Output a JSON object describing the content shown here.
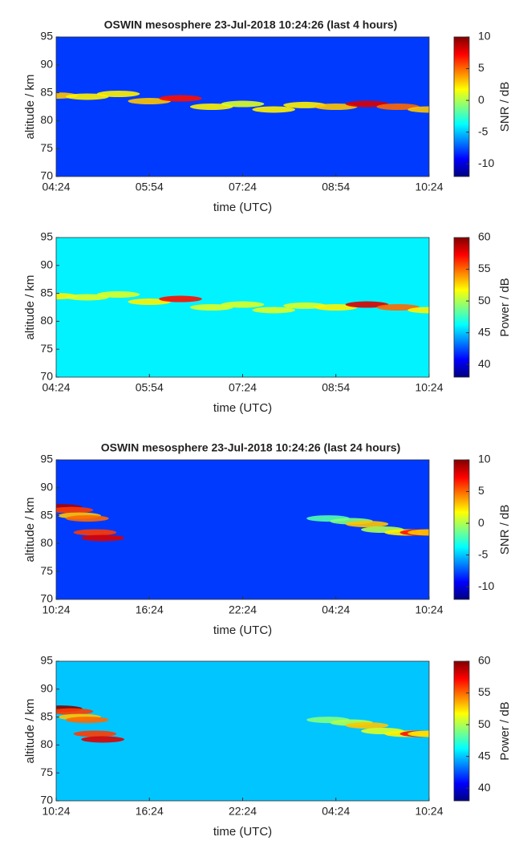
{
  "chart_data": [
    {
      "type": "heatmap",
      "title": "OSWIN mesosphere 23-Jul-2018 10:24:26 (last 4 hours)",
      "xlabel": "time (UTC)",
      "ylabel": "altitude / km",
      "colorbar_label": "SNR / dB",
      "colormap": "jet",
      "xlim": [
        0,
        6
      ],
      "xticks": [
        {
          "value": 0,
          "label": "04:24"
        },
        {
          "value": 1.5,
          "label": "05:54"
        },
        {
          "value": 3,
          "label": "07:24"
        },
        {
          "value": 4.5,
          "label": "08:54"
        },
        {
          "value": 6,
          "label": "10:24"
        }
      ],
      "ylim": [
        70,
        95
      ],
      "yticks": [
        70,
        75,
        80,
        85,
        90,
        95
      ],
      "clim": [
        -12,
        10
      ],
      "cticks": [
        -10,
        -5,
        0,
        5,
        10
      ],
      "background": -8,
      "x": [
        0,
        0.5,
        1,
        1.5,
        2,
        2.5,
        3,
        3.5,
        4,
        4.5,
        5,
        5.5,
        6
      ],
      "y": [
        84.5,
        84.3,
        84.8,
        83.5,
        84,
        82.5,
        83,
        82,
        82.8,
        82.5,
        83,
        82.5,
        82
      ],
      "values": [
        3,
        2,
        2,
        3,
        7,
        2,
        1,
        2,
        2,
        3,
        8,
        5,
        3
      ]
    },
    {
      "type": "heatmap",
      "xlabel": "time (UTC)",
      "ylabel": "altitude / km",
      "colorbar_label": "Power / dB",
      "colormap": "jet",
      "xlim": [
        0,
        6
      ],
      "xticks": [
        {
          "value": 0,
          "label": "04:24"
        },
        {
          "value": 1.5,
          "label": "05:54"
        },
        {
          "value": 3,
          "label": "07:24"
        },
        {
          "value": 4.5,
          "label": "08:54"
        },
        {
          "value": 6,
          "label": "10:24"
        }
      ],
      "ylim": [
        70,
        95
      ],
      "yticks": [
        70,
        75,
        80,
        85,
        90,
        95
      ],
      "clim": [
        38,
        60
      ],
      "cticks": [
        40,
        45,
        50,
        55,
        60
      ],
      "background": 46,
      "x": [
        0,
        0.5,
        1,
        1.5,
        2,
        2.5,
        3,
        3.5,
        4,
        4.5,
        5,
        5.5,
        6
      ],
      "y": [
        84.5,
        84.3,
        84.8,
        83.5,
        84,
        82.5,
        83,
        82,
        82.8,
        82.5,
        83,
        82.5,
        82
      ],
      "values": [
        52,
        51,
        51,
        52,
        57,
        51,
        51,
        51,
        51,
        52,
        58,
        55,
        52
      ]
    },
    {
      "type": "heatmap",
      "title": "OSWIN mesosphere 23-Jul-2018 10:24:26 (last 24 hours)",
      "xlabel": "time (UTC)",
      "ylabel": "altitude / km",
      "colorbar_label": "SNR / dB",
      "colormap": "jet",
      "xlim": [
        0,
        24
      ],
      "xticks": [
        {
          "value": 0,
          "label": "10:24"
        },
        {
          "value": 6,
          "label": "16:24"
        },
        {
          "value": 12,
          "label": "22:24"
        },
        {
          "value": 18,
          "label": "04:24"
        },
        {
          "value": 24,
          "label": "10:24"
        }
      ],
      "ylim": [
        70,
        95
      ],
      "yticks": [
        70,
        75,
        80,
        85,
        90,
        95
      ],
      "clim": [
        -12,
        10
      ],
      "cticks": [
        -10,
        -5,
        0,
        5,
        10
      ],
      "background": -8,
      "x": [
        0.3,
        1,
        1.5,
        2,
        2.5,
        3,
        17.5,
        19,
        20,
        21,
        22.5,
        23.5,
        24
      ],
      "y": [
        86.5,
        86,
        85,
        84.5,
        82,
        81,
        84.5,
        84,
        83.5,
        82.5,
        82,
        82,
        82
      ],
      "values": [
        9,
        6,
        3,
        5,
        6,
        8,
        -2,
        -1,
        3,
        0,
        2,
        7,
        3
      ]
    },
    {
      "type": "heatmap",
      "xlabel": "time (UTC)",
      "ylabel": "altitude / km",
      "colorbar_label": "Power / dB",
      "colormap": "jet",
      "xlim": [
        0,
        24
      ],
      "xticks": [
        {
          "value": 0,
          "label": "10:24"
        },
        {
          "value": 6,
          "label": "16:24"
        },
        {
          "value": 12,
          "label": "22:24"
        },
        {
          "value": 18,
          "label": "04:24"
        },
        {
          "value": 24,
          "label": "10:24"
        }
      ],
      "ylim": [
        70,
        95
      ],
      "yticks": [
        70,
        75,
        80,
        85,
        90,
        95
      ],
      "clim": [
        38,
        60
      ],
      "cticks": [
        40,
        45,
        50,
        55,
        60
      ],
      "background": 45,
      "x": [
        0.3,
        1,
        1.5,
        2,
        2.5,
        3,
        17.5,
        19,
        20,
        21,
        22.5,
        23.5,
        24
      ],
      "y": [
        86.5,
        86,
        85,
        84.5,
        82,
        81,
        84.5,
        84,
        83.5,
        82.5,
        82,
        82,
        82
      ],
      "values": [
        60,
        56,
        53,
        55,
        56,
        58,
        49,
        50,
        53,
        51,
        52,
        57,
        52
      ]
    }
  ]
}
